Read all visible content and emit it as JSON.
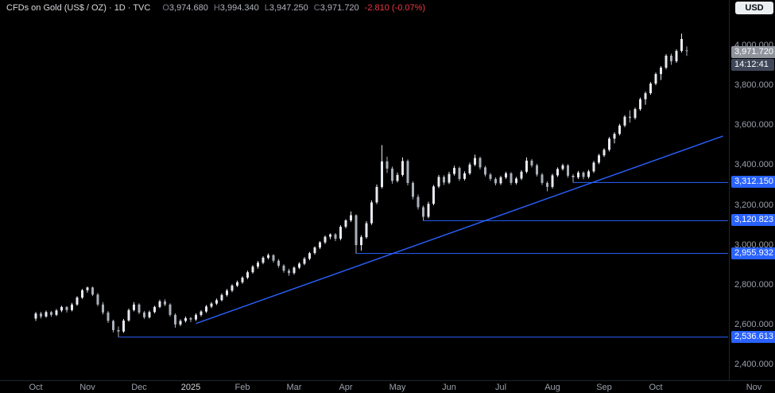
{
  "header": {
    "symbol_title": "CFDs on Gold (US$ / OZ) · 1D · TVC",
    "ohlc": {
      "o_label": "O",
      "o": "3,974.680",
      "h_label": "H",
      "h": "3,994.340",
      "l_label": "L",
      "l": "3,947.250",
      "c_label": "C",
      "c": "3,971.720",
      "change": "-2.810 (-0.07%)"
    },
    "currency_button": "USD"
  },
  "price_scale": {
    "current_price_label": "3,971.720",
    "countdown": "14:12:41",
    "tick_labels": [
      "4,000.000",
      "3,800.000",
      "3,600.000",
      "3,400.000",
      "3,200.000",
      "3,000.000",
      "2,800.000",
      "2,600.000",
      "2,400.000"
    ]
  },
  "chart_data": {
    "type": "candlestick",
    "title": "CFDs on Gold (US$ / OZ) · 1D · TVC",
    "ylim": [
      2400,
      4000
    ],
    "ytick_step": 200,
    "grid": false,
    "current_price": 3971.72,
    "colors": {
      "up_candle": "#e6e9ee",
      "down_candle": "#aab0ba",
      "level_blue": "#2962ff",
      "accent_red": "#f23645"
    },
    "x_axis_months": [
      {
        "label": "Oct",
        "idx": 0
      },
      {
        "label": "Nov",
        "idx": 10
      },
      {
        "label": "Dec",
        "idx": 20
      },
      {
        "label": "2025",
        "idx": 30,
        "is_year": true
      },
      {
        "label": "Feb",
        "idx": 40
      },
      {
        "label": "Mar",
        "idx": 50
      },
      {
        "label": "Apr",
        "idx": 60
      },
      {
        "label": "May",
        "idx": 70
      },
      {
        "label": "Jun",
        "idx": 80
      },
      {
        "label": "Jul",
        "idx": 90
      },
      {
        "label": "Aug",
        "idx": 100
      },
      {
        "label": "Sep",
        "idx": 110
      },
      {
        "label": "Oct",
        "idx": 120
      },
      {
        "label": "Nov",
        "idx": 139
      }
    ],
    "levels": [
      {
        "label": "3,312.150",
        "price": 3312.15,
        "start_idx": 104
      },
      {
        "label": "3,120.823",
        "price": 3120.823,
        "start_idx": 75
      },
      {
        "label": "2,955.932",
        "price": 2955.932,
        "start_idx": 62
      },
      {
        "label": "2,536.613",
        "price": 2536.613,
        "start_idx": 16
      }
    ],
    "trendline": {
      "start": {
        "idx": 31,
        "price": 2605
      },
      "end": {
        "idx": 133,
        "price": 3545
      }
    },
    "candles_ohlc": [
      [
        2630,
        2663,
        2618,
        2655
      ],
      [
        2655,
        2664,
        2630,
        2640
      ],
      [
        2640,
        2670,
        2634,
        2662
      ],
      [
        2662,
        2668,
        2639,
        2648
      ],
      [
        2648,
        2678,
        2642,
        2670
      ],
      [
        2670,
        2694,
        2662,
        2688
      ],
      [
        2688,
        2692,
        2660,
        2672
      ],
      [
        2672,
        2708,
        2666,
        2700
      ],
      [
        2700,
        2742,
        2694,
        2735
      ],
      [
        2735,
        2778,
        2728,
        2772
      ],
      [
        2772,
        2790,
        2760,
        2786
      ],
      [
        2786,
        2790,
        2742,
        2750
      ],
      [
        2750,
        2758,
        2692,
        2700
      ],
      [
        2700,
        2712,
        2650,
        2660
      ],
      [
        2660,
        2668,
        2608,
        2618
      ],
      [
        2618,
        2624,
        2560,
        2572
      ],
      [
        2572,
        2590,
        2537,
        2565
      ],
      [
        2565,
        2628,
        2558,
        2620
      ],
      [
        2620,
        2680,
        2614,
        2672
      ],
      [
        2672,
        2712,
        2666,
        2700
      ],
      [
        2700,
        2706,
        2652,
        2660
      ],
      [
        2660,
        2668,
        2628,
        2636
      ],
      [
        2636,
        2670,
        2630,
        2662
      ],
      [
        2662,
        2694,
        2656,
        2688
      ],
      [
        2688,
        2724,
        2682,
        2716
      ],
      [
        2716,
        2726,
        2692,
        2700
      ],
      [
        2700,
        2706,
        2640,
        2648
      ],
      [
        2648,
        2656,
        2584,
        2600
      ],
      [
        2600,
        2626,
        2592,
        2618
      ],
      [
        2618,
        2640,
        2610,
        2632
      ],
      [
        2632,
        2638,
        2612,
        2625
      ],
      [
        2625,
        2656,
        2618,
        2648
      ],
      [
        2648,
        2672,
        2640,
        2665
      ],
      [
        2665,
        2698,
        2658,
        2690
      ],
      [
        2690,
        2712,
        2682,
        2705
      ],
      [
        2705,
        2730,
        2698,
        2722
      ],
      [
        2722,
        2756,
        2716,
        2748
      ],
      [
        2748,
        2778,
        2740,
        2770
      ],
      [
        2770,
        2802,
        2762,
        2795
      ],
      [
        2795,
        2820,
        2788,
        2812
      ],
      [
        2812,
        2842,
        2804,
        2835
      ],
      [
        2835,
        2870,
        2828,
        2862
      ],
      [
        2862,
        2898,
        2855,
        2890
      ],
      [
        2890,
        2918,
        2880,
        2910
      ],
      [
        2910,
        2942,
        2902,
        2935
      ],
      [
        2935,
        2956,
        2926,
        2948
      ],
      [
        2948,
        2952,
        2910,
        2920
      ],
      [
        2920,
        2928,
        2885,
        2895
      ],
      [
        2895,
        2902,
        2860,
        2870
      ],
      [
        2870,
        2880,
        2844,
        2858
      ],
      [
        2858,
        2892,
        2850,
        2885
      ],
      [
        2885,
        2912,
        2878,
        2905
      ],
      [
        2905,
        2938,
        2898,
        2930
      ],
      [
        2930,
        2964,
        2922,
        2958
      ],
      [
        2958,
        2992,
        2950,
        2986
      ],
      [
        2986,
        3018,
        2978,
        3012
      ],
      [
        3012,
        3046,
        3004,
        3040
      ],
      [
        3040,
        3057,
        3028,
        3052
      ],
      [
        3052,
        3058,
        3018,
        3030
      ],
      [
        3030,
        3098,
        3022,
        3090
      ],
      [
        3090,
        3128,
        3082,
        3122
      ],
      [
        3122,
        3167,
        3114,
        3148
      ],
      [
        3148,
        3152,
        2956,
        2998
      ],
      [
        2998,
        3048,
        2970,
        3038
      ],
      [
        3038,
        3118,
        3030,
        3108
      ],
      [
        3108,
        3222,
        3100,
        3212
      ],
      [
        3212,
        3302,
        3204,
        3290
      ],
      [
        3290,
        3500,
        3282,
        3418
      ],
      [
        3418,
        3442,
        3360,
        3382
      ],
      [
        3382,
        3392,
        3306,
        3320
      ],
      [
        3320,
        3362,
        3312,
        3350
      ],
      [
        3350,
        3438,
        3342,
        3420
      ],
      [
        3420,
        3428,
        3298,
        3310
      ],
      [
        3310,
        3318,
        3228,
        3240
      ],
      [
        3240,
        3252,
        3176,
        3188
      ],
      [
        3188,
        3196,
        3121,
        3140
      ],
      [
        3140,
        3216,
        3132,
        3205
      ],
      [
        3205,
        3300,
        3198,
        3292
      ],
      [
        3292,
        3350,
        3284,
        3340
      ],
      [
        3340,
        3348,
        3300,
        3312
      ],
      [
        3312,
        3366,
        3304,
        3355
      ],
      [
        3355,
        3396,
        3347,
        3385
      ],
      [
        3385,
        3392,
        3320,
        3330
      ],
      [
        3330,
        3368,
        3322,
        3358
      ],
      [
        3358,
        3412,
        3350,
        3402
      ],
      [
        3402,
        3452,
        3394,
        3435
      ],
      [
        3435,
        3442,
        3378,
        3388
      ],
      [
        3388,
        3396,
        3342,
        3352
      ],
      [
        3352,
        3360,
        3320,
        3330
      ],
      [
        3330,
        3338,
        3298,
        3308
      ],
      [
        3308,
        3346,
        3300,
        3338
      ],
      [
        3338,
        3366,
        3330,
        3358
      ],
      [
        3358,
        3364,
        3300,
        3310
      ],
      [
        3310,
        3340,
        3302,
        3332
      ],
      [
        3332,
        3374,
        3324,
        3366
      ],
      [
        3366,
        3438,
        3358,
        3422
      ],
      [
        3422,
        3430,
        3388,
        3398
      ],
      [
        3398,
        3406,
        3342,
        3352
      ],
      [
        3352,
        3360,
        3300,
        3310
      ],
      [
        3310,
        3318,
        3268,
        3290
      ],
      [
        3290,
        3356,
        3282,
        3348
      ],
      [
        3348,
        3388,
        3340,
        3380
      ],
      [
        3380,
        3406,
        3372,
        3398
      ],
      [
        3398,
        3404,
        3336,
        3346
      ],
      [
        3346,
        3354,
        3312,
        3338
      ],
      [
        3338,
        3370,
        3330,
        3362
      ],
      [
        3362,
        3368,
        3328,
        3340
      ],
      [
        3340,
        3376,
        3332,
        3368
      ],
      [
        3368,
        3420,
        3360,
        3412
      ],
      [
        3412,
        3456,
        3404,
        3448
      ],
      [
        3448,
        3484,
        3440,
        3476
      ],
      [
        3476,
        3540,
        3468,
        3532
      ],
      [
        3532,
        3564,
        3508,
        3556
      ],
      [
        3556,
        3606,
        3548,
        3598
      ],
      [
        3598,
        3650,
        3590,
        3642
      ],
      [
        3642,
        3674,
        3612,
        3636
      ],
      [
        3636,
        3688,
        3628,
        3680
      ],
      [
        3680,
        3738,
        3672,
        3730
      ],
      [
        3730,
        3768,
        3702,
        3760
      ],
      [
        3760,
        3816,
        3752,
        3808
      ],
      [
        3808,
        3864,
        3800,
        3856
      ],
      [
        3856,
        3896,
        3826,
        3888
      ],
      [
        3888,
        3956,
        3880,
        3948
      ],
      [
        3948,
        3958,
        3902,
        3920
      ],
      [
        3920,
        3980,
        3912,
        3972
      ],
      [
        3972,
        4059,
        3964,
        4032
      ],
      [
        3974.68,
        3994.34,
        3947.25,
        3971.72
      ]
    ]
  }
}
